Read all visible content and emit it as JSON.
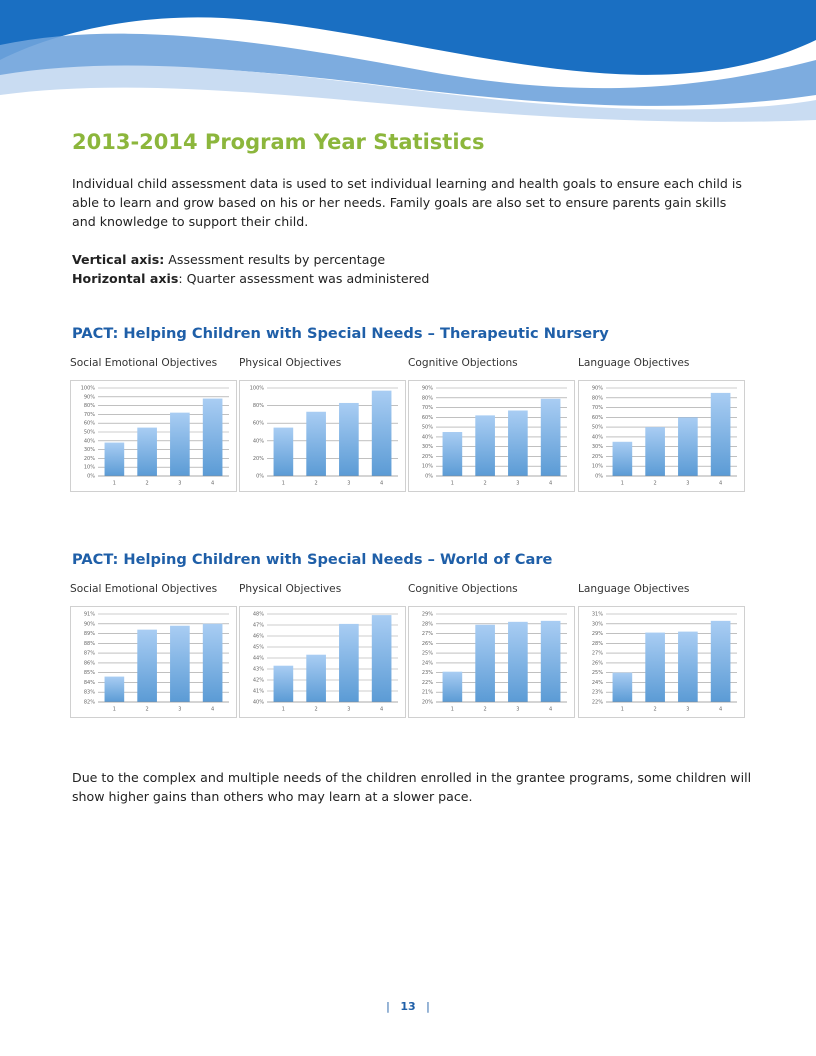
{
  "title": "2013-2014 Program Year Statistics",
  "intro": "Individual child assessment data is used to set individual learning and health goals to ensure each child is able to learn and grow based on his or her needs. Family goals are also set to ensure parents gain skills and knowledge to support their child.",
  "axis_notes": [
    {
      "label": "Vertical axis:",
      "text": " Assessment results by percentage"
    },
    {
      "label": "Horizontal axis",
      "text": ": Quarter assessment was administered"
    }
  ],
  "sections": [
    {
      "heading": "PACT: Helping Children with Special Needs – Therapeutic Nursery",
      "charts": [
        {
          "type": "bar",
          "title": "Social Emotional Objectives",
          "categories": [
            "1",
            "2",
            "3",
            "4"
          ],
          "values": [
            38,
            55,
            72,
            88
          ],
          "color": "#5b9bd5",
          "grid": true,
          "ylim": [
            0,
            100
          ],
          "yticks": [
            {
              "value": 0,
              "label": "0%"
            },
            {
              "value": 10,
              "label": "10%"
            },
            {
              "value": 20,
              "label": "20%"
            },
            {
              "value": 30,
              "label": "30%"
            },
            {
              "value": 40,
              "label": "40%"
            },
            {
              "value": 50,
              "label": "50%"
            },
            {
              "value": 60,
              "label": "60%"
            },
            {
              "value": 70,
              "label": "70%"
            },
            {
              "value": 80,
              "label": "80%"
            },
            {
              "value": 90,
              "label": "90%"
            },
            {
              "value": 100,
              "label": "100%"
            }
          ]
        },
        {
          "type": "bar",
          "title": "Physical Objectives",
          "categories": [
            "1",
            "2",
            "3",
            "4"
          ],
          "values": [
            55,
            73,
            83,
            97
          ],
          "color": "#5b9bd5",
          "grid": true,
          "ylim": [
            0,
            100
          ],
          "yticks": [
            {
              "value": 0,
              "label": "0%"
            },
            {
              "value": 20,
              "label": "20%"
            },
            {
              "value": 40,
              "label": "40%"
            },
            {
              "value": 60,
              "label": "60%"
            },
            {
              "value": 80,
              "label": "80%"
            },
            {
              "value": 100,
              "label": "100%"
            }
          ]
        },
        {
          "type": "bar",
          "title": "Cognitive Objections",
          "categories": [
            "1",
            "2",
            "3",
            "4"
          ],
          "values": [
            45,
            62,
            67,
            79
          ],
          "color": "#5b9bd5",
          "grid": true,
          "ylim": [
            0,
            90
          ],
          "yticks": [
            {
              "value": 0,
              "label": "0%"
            },
            {
              "value": 10,
              "label": "10%"
            },
            {
              "value": 20,
              "label": "20%"
            },
            {
              "value": 30,
              "label": "30%"
            },
            {
              "value": 40,
              "label": "40%"
            },
            {
              "value": 50,
              "label": "50%"
            },
            {
              "value": 60,
              "label": "60%"
            },
            {
              "value": 70,
              "label": "70%"
            },
            {
              "value": 80,
              "label": "80%"
            },
            {
              "value": 90,
              "label": "90%"
            }
          ]
        },
        {
          "type": "bar",
          "title": "Language Objectives",
          "categories": [
            "1",
            "2",
            "3",
            "4"
          ],
          "values": [
            35,
            50,
            60,
            85
          ],
          "color": "#5b9bd5",
          "grid": true,
          "ylim": [
            0,
            90
          ],
          "yticks": [
            {
              "value": 0,
              "label": "0%"
            },
            {
              "value": 10,
              "label": "10%"
            },
            {
              "value": 20,
              "label": "20%"
            },
            {
              "value": 30,
              "label": "30%"
            },
            {
              "value": 40,
              "label": "40%"
            },
            {
              "value": 50,
              "label": "50%"
            },
            {
              "value": 60,
              "label": "60%"
            },
            {
              "value": 70,
              "label": "70%"
            },
            {
              "value": 80,
              "label": "80%"
            },
            {
              "value": 90,
              "label": "90%"
            }
          ]
        }
      ]
    },
    {
      "heading": "PACT: Helping Children with Special Needs – World of Care",
      "charts": [
        {
          "type": "bar",
          "title": "Social Emotional Objectives",
          "categories": [
            "1",
            "2",
            "3",
            "4"
          ],
          "values": [
            84.6,
            89.4,
            89.8,
            90.0
          ],
          "color": "#5b9bd5",
          "grid": true,
          "ylim": [
            82,
            91
          ],
          "yticks": [
            {
              "value": 82,
              "label": "82%"
            },
            {
              "value": 83,
              "label": "83%"
            },
            {
              "value": 84,
              "label": "84%"
            },
            {
              "value": 85,
              "label": "85%"
            },
            {
              "value": 86,
              "label": "86%"
            },
            {
              "value": 87,
              "label": "87%"
            },
            {
              "value": 88,
              "label": "88%"
            },
            {
              "value": 89,
              "label": "89%"
            },
            {
              "value": 90,
              "label": "90%"
            },
            {
              "value": 91,
              "label": "91%"
            }
          ]
        },
        {
          "type": "bar",
          "title": "Physical Objectives",
          "categories": [
            "1",
            "2",
            "3",
            "4"
          ],
          "values": [
            43.3,
            44.3,
            47.1,
            47.9
          ],
          "color": "#5b9bd5",
          "grid": true,
          "ylim": [
            40,
            48
          ],
          "yticks": [
            {
              "value": 40,
              "label": "40%"
            },
            {
              "value": 41,
              "label": "41%"
            },
            {
              "value": 42,
              "label": "42%"
            },
            {
              "value": 43,
              "label": "43%"
            },
            {
              "value": 44,
              "label": "44%"
            },
            {
              "value": 45,
              "label": "45%"
            },
            {
              "value": 46,
              "label": "46%"
            },
            {
              "value": 47,
              "label": "47%"
            },
            {
              "value": 48,
              "label": "48%"
            }
          ]
        },
        {
          "type": "bar",
          "title": "Cognitive Objections",
          "categories": [
            "1",
            "2",
            "3",
            "4"
          ],
          "values": [
            23.1,
            27.9,
            28.2,
            28.3
          ],
          "color": "#5b9bd5",
          "grid": true,
          "ylim": [
            20,
            29
          ],
          "yticks": [
            {
              "value": 20,
              "label": "20%"
            },
            {
              "value": 21,
              "label": "21%"
            },
            {
              "value": 22,
              "label": "22%"
            },
            {
              "value": 23,
              "label": "23%"
            },
            {
              "value": 24,
              "label": "24%"
            },
            {
              "value": 25,
              "label": "25%"
            },
            {
              "value": 26,
              "label": "26%"
            },
            {
              "value": 27,
              "label": "27%"
            },
            {
              "value": 28,
              "label": "28%"
            },
            {
              "value": 29,
              "label": "29%"
            }
          ]
        },
        {
          "type": "bar",
          "title": "Language Objectives",
          "categories": [
            "1",
            "2",
            "3",
            "4"
          ],
          "values": [
            25.0,
            29.1,
            29.2,
            30.3
          ],
          "color": "#5b9bd5",
          "grid": true,
          "ylim": [
            22,
            31
          ],
          "yticks": [
            {
              "value": 22,
              "label": "22%"
            },
            {
              "value": 23,
              "label": "23%"
            },
            {
              "value": 24,
              "label": "24%"
            },
            {
              "value": 25,
              "label": "25%"
            },
            {
              "value": 26,
              "label": "26%"
            },
            {
              "value": 27,
              "label": "27%"
            },
            {
              "value": 28,
              "label": "28%"
            },
            {
              "value": 29,
              "label": "29%"
            },
            {
              "value": 30,
              "label": "30%"
            },
            {
              "value": 31,
              "label": "31%"
            }
          ]
        }
      ]
    }
  ],
  "closing": "Due to the complex and multiple needs of the children enrolled in the grantee programs, some children will show higher gains than others who may learn at a slower pace.",
  "page_number": "13"
}
